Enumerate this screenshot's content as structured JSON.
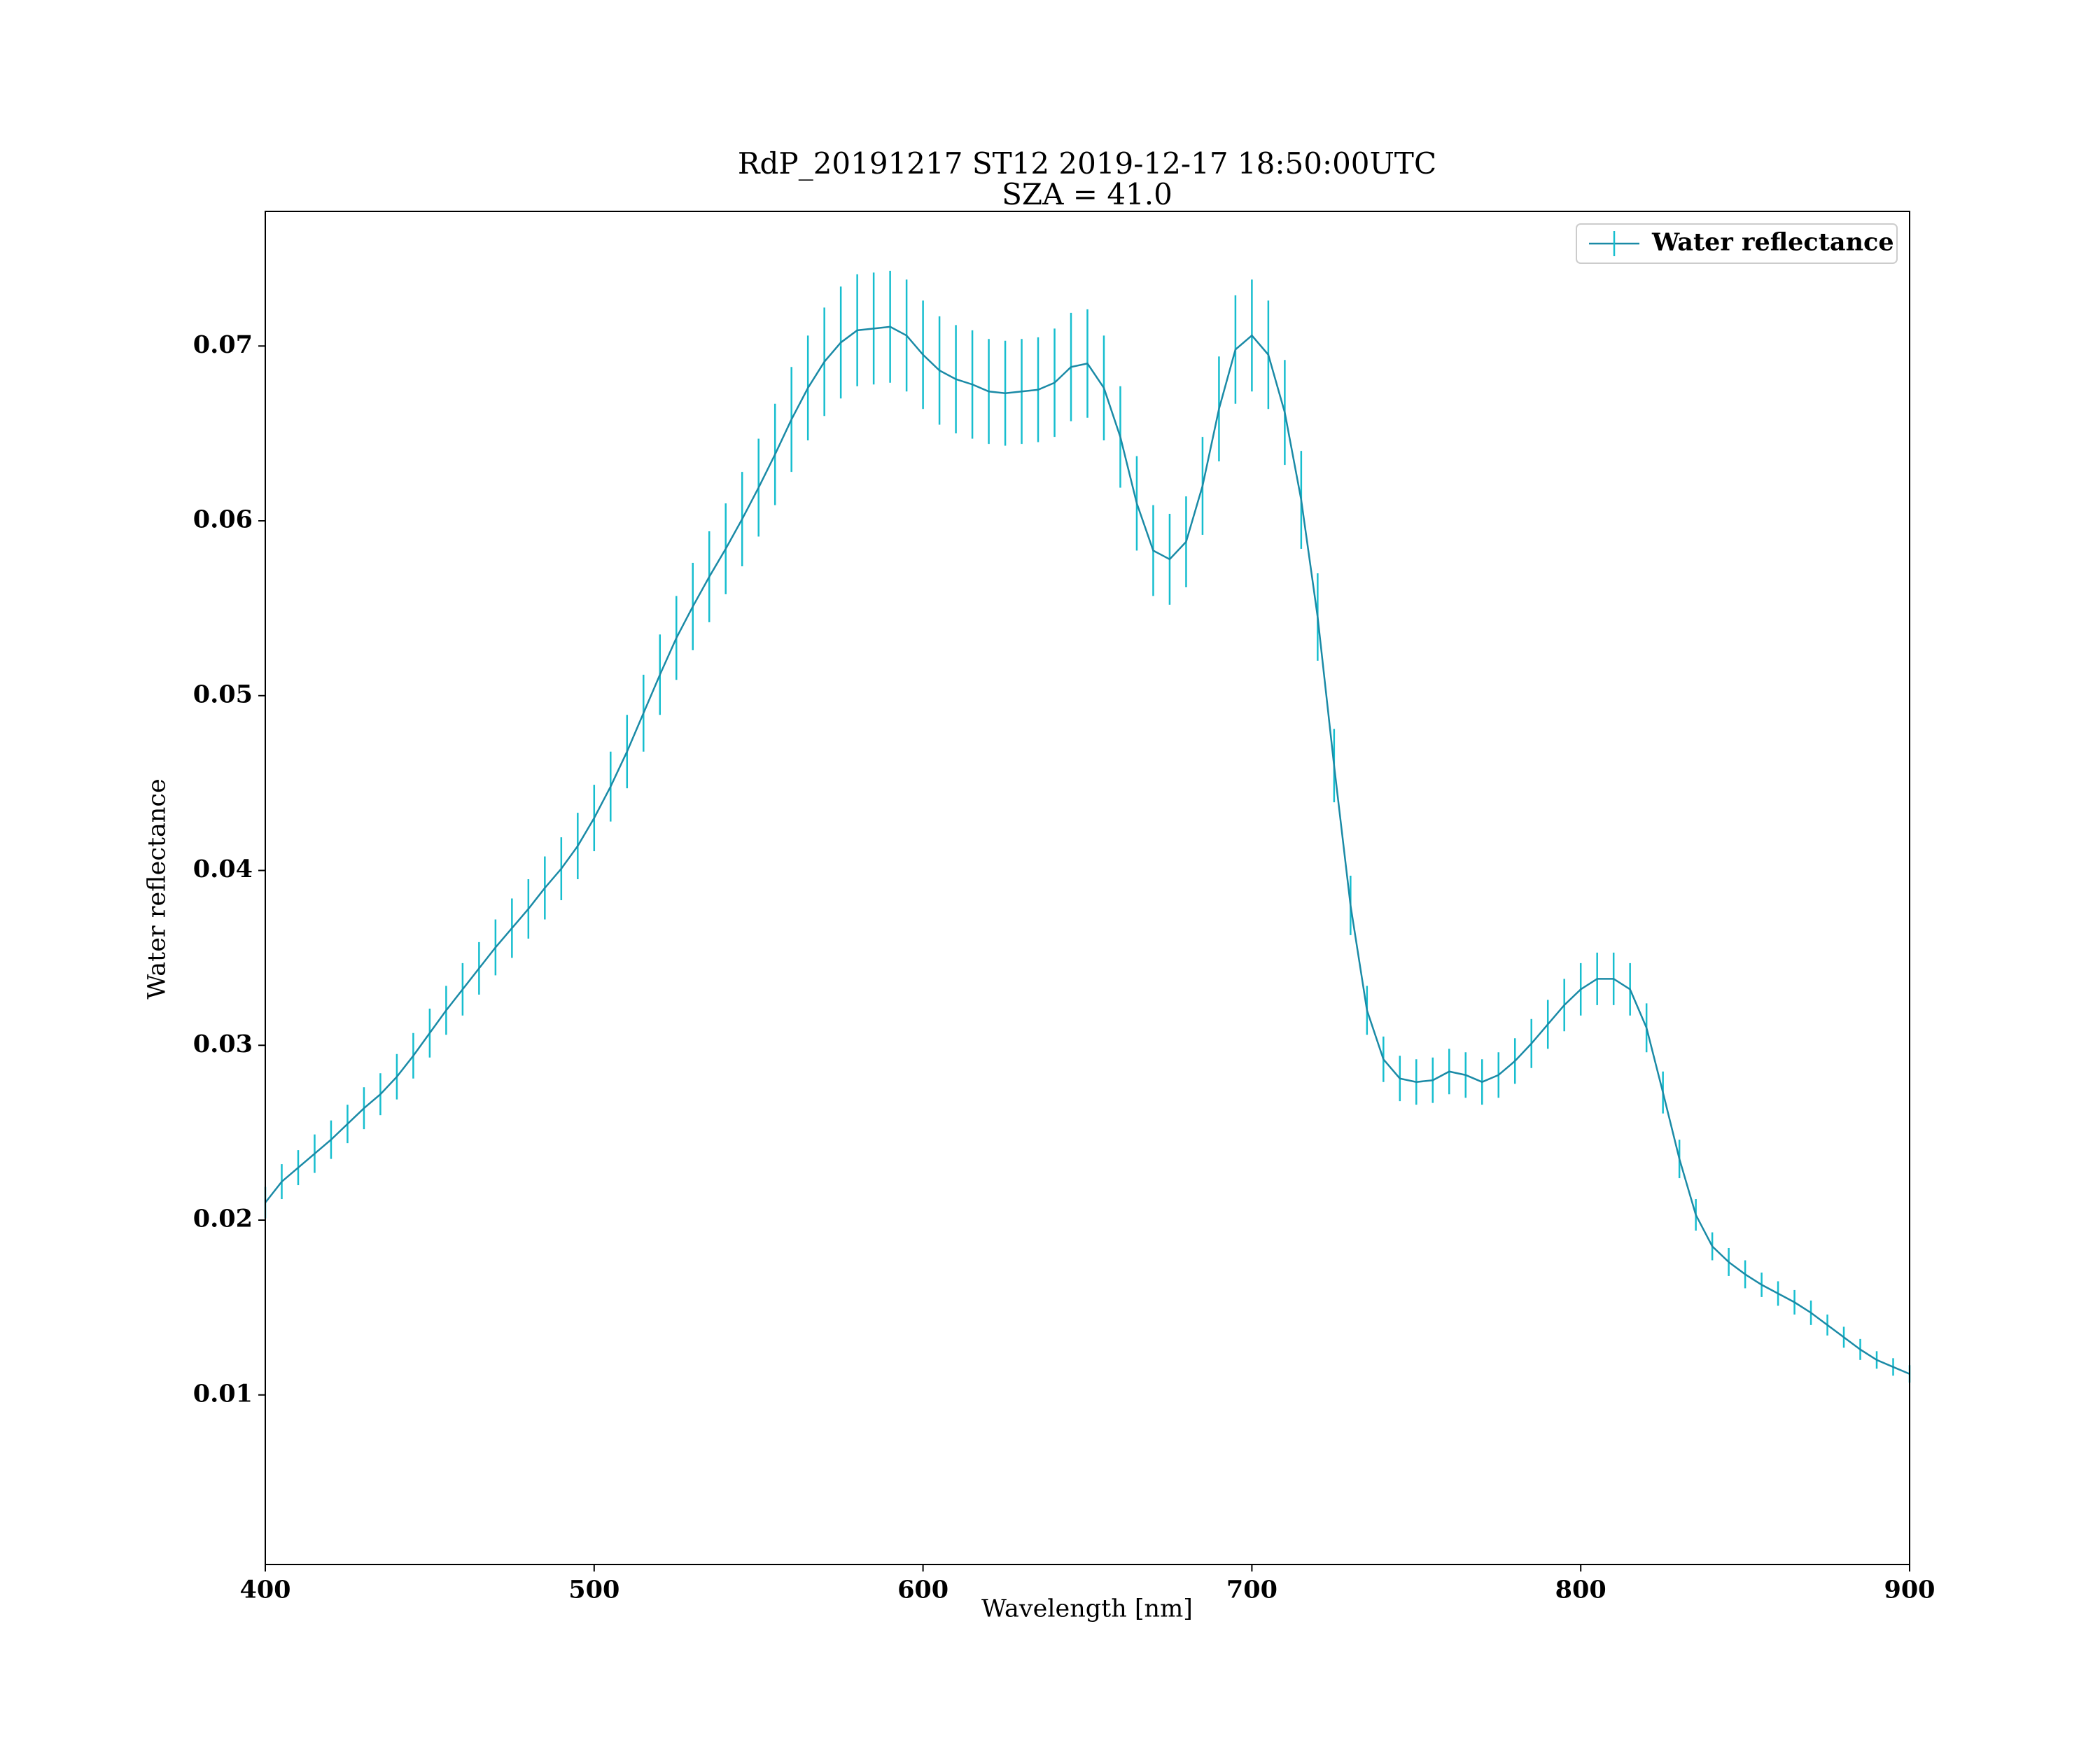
{
  "chart_data": {
    "type": "errorbar_line",
    "title": "RdP_20191217 ST12 2019-12-17 18:50:00UTC",
    "subtitle": "SZA = 41.0",
    "x_label": "Wavelength [nm]",
    "y_label": "Water reflectance",
    "xlim": [
      400,
      900
    ],
    "ylim": [
      0.0003,
      0.0777
    ],
    "xticks": [
      400,
      500,
      600,
      700,
      800,
      900
    ],
    "yticks": [
      0.01,
      0.02,
      0.03,
      0.04,
      0.05,
      0.06,
      0.07
    ],
    "legend": "upper right",
    "x": [
      400,
      405,
      410,
      415,
      420,
      425,
      430,
      435,
      440,
      445,
      450,
      455,
      460,
      465,
      470,
      475,
      480,
      485,
      490,
      495,
      500,
      505,
      510,
      515,
      520,
      525,
      530,
      535,
      540,
      545,
      550,
      555,
      560,
      565,
      570,
      575,
      580,
      585,
      590,
      595,
      600,
      605,
      610,
      615,
      620,
      625,
      630,
      635,
      640,
      645,
      650,
      655,
      660,
      665,
      670,
      675,
      680,
      685,
      690,
      695,
      700,
      705,
      710,
      715,
      720,
      725,
      730,
      735,
      740,
      745,
      750,
      755,
      760,
      765,
      770,
      775,
      780,
      785,
      790,
      795,
      800,
      805,
      810,
      815,
      820,
      825,
      830,
      835,
      840,
      845,
      850,
      855,
      860,
      865,
      870,
      875,
      880,
      885,
      890,
      895,
      900
    ],
    "series": [
      {
        "name": "Water reflectance",
        "color": "#1a8aa6",
        "error_color": "#17becf",
        "values": [
          0.021,
          0.0222,
          0.023,
          0.0238,
          0.0246,
          0.0255,
          0.0264,
          0.0272,
          0.0282,
          0.0294,
          0.0307,
          0.032,
          0.0332,
          0.0344,
          0.0356,
          0.0367,
          0.0378,
          0.039,
          0.0401,
          0.0414,
          0.043,
          0.0448,
          0.0468,
          0.049,
          0.0512,
          0.0533,
          0.0551,
          0.0568,
          0.0584,
          0.0601,
          0.0619,
          0.0638,
          0.0658,
          0.0676,
          0.0691,
          0.0702,
          0.0709,
          0.071,
          0.0711,
          0.0706,
          0.0695,
          0.0686,
          0.0681,
          0.0678,
          0.0674,
          0.0673,
          0.0674,
          0.0675,
          0.0679,
          0.0688,
          0.069,
          0.0676,
          0.0648,
          0.061,
          0.0583,
          0.0578,
          0.0588,
          0.062,
          0.0664,
          0.0698,
          0.0706,
          0.0695,
          0.0662,
          0.0612,
          0.0545,
          0.046,
          0.038,
          0.032,
          0.0292,
          0.0281,
          0.0279,
          0.028,
          0.0285,
          0.0283,
          0.0279,
          0.0283,
          0.0291,
          0.0301,
          0.0312,
          0.0323,
          0.0332,
          0.0338,
          0.0338,
          0.0332,
          0.031,
          0.0273,
          0.0235,
          0.0203,
          0.0185,
          0.0176,
          0.0169,
          0.0163,
          0.0158,
          0.0153,
          0.0147,
          0.014,
          0.0133,
          0.0126,
          0.012,
          0.0116,
          0.0112
        ],
        "errors": [
          0.0009,
          0.001,
          0.001,
          0.0011,
          0.0011,
          0.0011,
          0.0012,
          0.0012,
          0.0013,
          0.0013,
          0.0014,
          0.0014,
          0.0015,
          0.0015,
          0.0016,
          0.0017,
          0.0017,
          0.0018,
          0.0018,
          0.0019,
          0.0019,
          0.002,
          0.0021,
          0.0022,
          0.0023,
          0.0024,
          0.0025,
          0.0026,
          0.0026,
          0.0027,
          0.0028,
          0.0029,
          0.003,
          0.003,
          0.0031,
          0.0032,
          0.0032,
          0.0032,
          0.0032,
          0.0032,
          0.0031,
          0.0031,
          0.0031,
          0.0031,
          0.003,
          0.003,
          0.003,
          0.003,
          0.0031,
          0.0031,
          0.0031,
          0.003,
          0.0029,
          0.0027,
          0.0026,
          0.0026,
          0.0026,
          0.0028,
          0.003,
          0.0031,
          0.0032,
          0.0031,
          0.003,
          0.0028,
          0.0025,
          0.0021,
          0.0017,
          0.0014,
          0.0013,
          0.0013,
          0.0013,
          0.0013,
          0.0013,
          0.0013,
          0.0013,
          0.0013,
          0.0013,
          0.0014,
          0.0014,
          0.0015,
          0.0015,
          0.0015,
          0.0015,
          0.0015,
          0.0014,
          0.0012,
          0.0011,
          0.0009,
          0.0008,
          0.0008,
          0.0008,
          0.0007,
          0.0007,
          0.0007,
          0.0007,
          0.0006,
          0.0006,
          0.0006,
          0.0005,
          0.0005,
          0.0005
        ]
      }
    ]
  }
}
